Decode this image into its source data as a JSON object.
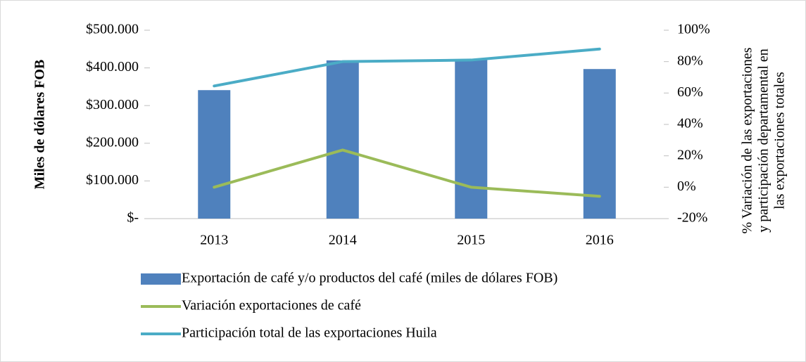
{
  "chart_data": {
    "type": "bar",
    "categories": [
      "2013",
      "2014",
      "2015",
      "2016"
    ],
    "series": [
      {
        "name": "Exportación de café y/o productos del café (miles de dólares FOB)",
        "type": "bar",
        "color": "#4f81bd",
        "values": [
          341000,
          420000,
          421000,
          397000
        ]
      },
      {
        "name": "Variación exportaciones de café",
        "type": "line",
        "axis": "y2",
        "color": "#9bbb59",
        "values": [
          0,
          23.7,
          0,
          -5.8
        ]
      },
      {
        "name": "Participación total de las exportaciones Huila",
        "type": "line",
        "axis": "y2",
        "color": "#4bacc6",
        "values": [
          64.5,
          80,
          81,
          88
        ]
      }
    ],
    "ylabel": "Miles de dólares FOB",
    "y2label": [
      "% Variación de las exportaciones",
      "y participación departamental en",
      "las exportaciones totales"
    ],
    "ylim": [
      0,
      500000
    ],
    "yticks": [
      {
        "value": 0,
        "label": "$-"
      },
      {
        "value": 100000,
        "label": "$100.000"
      },
      {
        "value": 200000,
        "label": "$200.000"
      },
      {
        "value": 300000,
        "label": "$300.000"
      },
      {
        "value": 400000,
        "label": "$400.000"
      },
      {
        "value": 500000,
        "label": "$500.000"
      }
    ],
    "y2lim": [
      -20,
      100
    ],
    "y2ticks": [
      {
        "value": -20,
        "label": "-20%"
      },
      {
        "value": 0,
        "label": "0%"
      },
      {
        "value": 20,
        "label": "20%"
      },
      {
        "value": 40,
        "label": "40%"
      },
      {
        "value": 60,
        "label": "60%"
      },
      {
        "value": 80,
        "label": "80%"
      },
      {
        "value": 100,
        "label": "100%"
      }
    ],
    "grid": false,
    "legend": "bottom"
  }
}
